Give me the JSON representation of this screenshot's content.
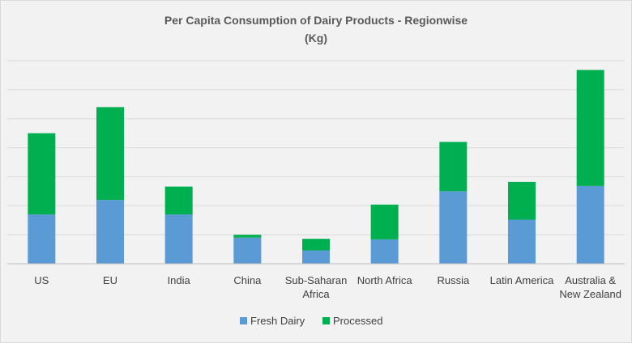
{
  "chart_data": {
    "type": "bar",
    "stacked": true,
    "title": "Per Capita Consumption of Dairy Products - Regionwise",
    "subtitle": "(Kg)",
    "categories": [
      "US",
      "EU",
      "India",
      "China",
      "Sub-Saharan Africa",
      "North Africa",
      "Russia",
      "Latin America",
      "Australia & New Zealand"
    ],
    "series": [
      {
        "name": "Fresh Dairy",
        "color": "#5b9bd5",
        "values": [
          85,
          110,
          85,
          45,
          23,
          42,
          125,
          76,
          134
        ]
      },
      {
        "name": "Processed",
        "color": "#00b050",
        "values": [
          140,
          160,
          48,
          5,
          20,
          60,
          85,
          65,
          200
        ]
      }
    ],
    "ylim": [
      0,
      350
    ],
    "ygrid_step": 50,
    "grid": true,
    "y_tick_labels_shown": false,
    "legend_position": "bottom"
  }
}
